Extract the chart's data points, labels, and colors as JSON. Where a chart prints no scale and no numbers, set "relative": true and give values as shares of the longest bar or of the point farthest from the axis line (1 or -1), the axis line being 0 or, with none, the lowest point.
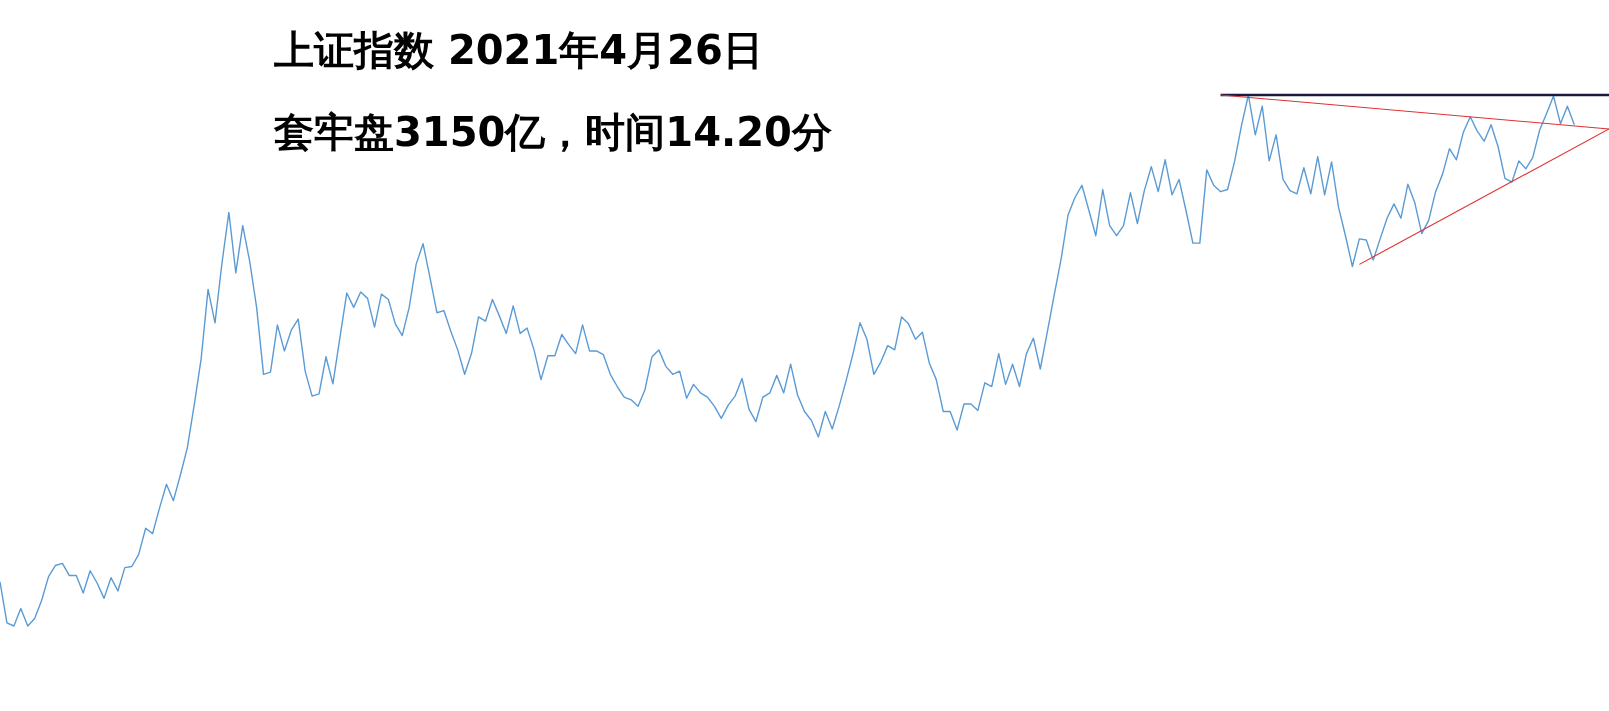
{
  "chart_data": {
    "type": "line",
    "title": "上证指数 2021年4月26日",
    "subtitle": "套牢盘3150亿，时间14.20分",
    "relative": true,
    "categories": [
      null,
      null,
      null,
      null,
      null,
      null,
      null,
      null,
      null,
      null,
      null,
      null,
      null,
      null,
      null,
      null,
      null,
      null,
      null,
      null,
      null,
      null,
      null,
      null,
      null,
      null,
      null,
      null,
      null,
      null,
      null,
      null,
      null,
      null,
      null,
      null,
      null,
      null,
      null,
      null,
      null,
      null,
      null,
      null,
      null,
      null,
      null,
      null,
      null,
      null,
      null,
      null,
      null,
      null,
      null,
      null,
      null,
      null,
      null,
      null,
      null,
      null,
      null,
      null,
      null,
      null,
      null,
      null,
      null,
      null,
      null,
      null,
      null,
      null,
      null,
      null,
      null,
      null,
      null,
      null,
      null,
      null,
      null,
      null,
      null,
      null,
      null,
      null,
      null,
      null,
      null,
      null,
      null,
      null,
      null,
      null,
      null,
      null,
      null,
      null,
      null,
      null,
      null,
      null,
      null,
      null,
      null,
      null,
      null,
      null,
      null,
      null,
      null,
      null,
      null,
      null,
      null,
      null,
      null,
      null,
      null,
      null,
      null,
      null,
      null,
      null,
      null,
      null,
      null,
      null,
      null,
      null,
      null,
      null,
      null,
      null,
      null,
      null,
      null,
      null,
      null,
      null,
      null,
      null,
      null,
      null,
      null,
      null,
      null,
      null,
      null,
      null,
      null,
      null,
      null,
      null,
      null,
      null,
      null,
      null,
      null,
      null,
      null,
      null,
      null,
      null,
      null,
      null,
      null,
      null,
      null,
      null,
      null,
      null,
      null,
      null,
      null,
      null,
      null,
      null,
      null,
      null,
      null,
      null,
      null,
      null,
      null,
      null,
      null,
      null,
      null,
      null,
      null,
      null,
      null,
      null,
      null,
      null,
      null,
      null,
      null,
      null,
      null,
      null,
      null,
      null,
      null,
      null,
      null,
      null,
      null,
      null,
      null,
      null,
      null,
      null,
      null,
      null,
      null,
      null,
      null,
      null,
      null,
      null,
      null,
      null,
      null,
      null,
      null,
      null,
      null,
      null,
      null
    ],
    "series": [
      {
        "color": "#5b9bd5",
        "values": [
          0.083,
          0.006,
          0,
          0.033,
          0,
          0.014,
          0.048,
          0.093,
          0.114,
          0.118,
          0.095,
          0.095,
          0.062,
          0.104,
          0.081,
          0.052,
          0.091,
          0.066,
          0.11,
          0.112,
          0.135,
          0.184,
          0.174,
          0.222,
          0.267,
          0.236,
          0.284,
          0.335,
          0.416,
          0.503,
          0.634,
          0.571,
          0.683,
          0.779,
          0.665,
          0.754,
          0.687,
          0.6,
          0.474,
          0.478,
          0.567,
          0.518,
          0.557,
          0.578,
          0.48,
          0.433,
          0.437,
          0.507,
          0.456,
          0.542,
          0.627,
          0.6,
          0.629,
          0.617,
          0.563,
          0.625,
          0.615,
          0.569,
          0.547,
          0.6,
          0.681,
          0.72,
          0.656,
          0.59,
          0.594,
          0.555,
          0.52,
          0.474,
          0.514,
          0.582,
          0.574,
          0.615,
          0.584,
          0.551,
          0.603,
          0.551,
          0.561,
          0.52,
          0.464,
          0.509,
          0.509,
          0.549,
          0.53,
          0.513,
          0.567,
          0.518,
          0.518,
          0.511,
          0.474,
          0.451,
          0.431,
          0.426,
          0.414,
          0.445,
          0.507,
          0.52,
          0.489,
          0.474,
          0.48,
          0.429,
          0.455,
          0.439,
          0.431,
          0.414,
          0.391,
          0.416,
          0.433,
          0.466,
          0.408,
          0.385,
          0.431,
          0.439,
          0.472,
          0.439,
          0.493,
          0.435,
          0.404,
          0.387,
          0.356,
          0.404,
          0.371,
          0.414,
          0.462,
          0.513,
          0.571,
          0.54,
          0.474,
          0.497,
          0.528,
          0.52,
          0.582,
          0.569,
          0.54,
          0.553,
          0.495,
          0.464,
          0.404,
          0.404,
          0.369,
          0.418,
          0.418,
          0.406,
          0.458,
          0.451,
          0.513,
          0.455,
          0.493,
          0.451,
          0.513,
          0.542,
          0.484,
          0.553,
          0.623,
          0.691,
          0.774,
          0.807,
          0.83,
          0.783,
          0.735,
          0.822,
          0.754,
          0.735,
          0.754,
          0.816,
          0.758,
          0.82,
          0.865,
          0.818,
          0.878,
          0.812,
          0.841,
          0.783,
          0.721,
          0.721,
          0.859,
          0.83,
          0.818,
          0.822,
          0.874,
          0.942,
          1,
          0.925,
          0.979,
          0.876,
          0.925,
          0.841,
          0.82,
          0.814,
          0.863,
          0.814,
          0.884,
          0.812,
          0.874,
          0.789,
          0.735,
          0.677,
          0.729,
          0.727,
          0.689,
          0.729,
          0.768,
          0.795,
          0.768,
          0.832,
          0.797,
          0.739,
          0.764,
          0.818,
          0.851,
          0.899,
          0.878,
          0.93,
          0.959,
          0.932,
          0.913,
          0.944,
          0.903,
          0.843,
          0.836,
          0.876,
          0.861,
          0.882,
          0.934,
          0.965,
          0.998,
          0.946,
          0.979,
          0.944,
          null,
          null,
          null,
          null,
          null
        ]
      },
      {
        "color": "#1a1a40",
        "values": [
          null,
          null,
          null,
          null,
          null,
          null,
          null,
          null,
          null,
          null,
          null,
          null,
          null,
          null,
          null,
          null,
          null,
          null,
          null,
          null,
          null,
          null,
          null,
          null,
          null,
          null,
          null,
          null,
          null,
          null,
          null,
          null,
          null,
          null,
          null,
          null,
          null,
          null,
          null,
          null,
          null,
          null,
          null,
          null,
          null,
          null,
          null,
          null,
          null,
          null,
          null,
          null,
          null,
          null,
          null,
          null,
          null,
          null,
          null,
          null,
          null,
          null,
          null,
          null,
          null,
          null,
          null,
          null,
          null,
          null,
          null,
          null,
          null,
          null,
          null,
          null,
          null,
          null,
          null,
          null,
          null,
          null,
          null,
          null,
          null,
          null,
          null,
          null,
          null,
          null,
          null,
          null,
          null,
          null,
          null,
          null,
          null,
          null,
          null,
          null,
          null,
          null,
          null,
          null,
          null,
          null,
          null,
          null,
          null,
          null,
          null,
          null,
          null,
          null,
          null,
          null,
          null,
          null,
          null,
          null,
          null,
          null,
          null,
          null,
          null,
          null,
          null,
          null,
          null,
          null,
          null,
          null,
          null,
          null,
          null,
          null,
          null,
          null,
          null,
          null,
          null,
          null,
          null,
          null,
          null,
          null,
          null,
          null,
          null,
          null,
          null,
          null,
          null,
          null,
          null,
          null,
          null,
          null,
          null,
          null,
          null,
          null,
          null,
          null,
          null,
          null,
          null,
          null,
          null,
          null,
          null,
          null,
          null,
          null,
          null,
          null,
          1,
          null,
          null,
          null,
          null,
          null,
          null,
          null,
          null,
          null,
          null,
          null,
          null,
          null,
          null,
          null,
          null,
          null,
          null,
          null,
          null,
          null,
          null,
          null,
          null,
          null,
          null,
          null,
          null,
          null,
          null,
          null,
          null,
          null,
          null,
          null,
          null,
          null,
          null,
          null,
          null,
          null,
          null,
          null,
          null,
          null,
          null,
          null,
          null,
          null,
          null,
          null,
          null,
          null,
          null,
          null,
          1
        ]
      },
      {
        "color": "#e03030",
        "values": [
          null,
          null,
          null,
          null,
          null,
          null,
          null,
          null,
          null,
          null,
          null,
          null,
          null,
          null,
          null,
          null,
          null,
          null,
          null,
          null,
          null,
          null,
          null,
          null,
          null,
          null,
          null,
          null,
          null,
          null,
          null,
          null,
          null,
          null,
          null,
          null,
          null,
          null,
          null,
          null,
          null,
          null,
          null,
          null,
          null,
          null,
          null,
          null,
          null,
          null,
          null,
          null,
          null,
          null,
          null,
          null,
          null,
          null,
          null,
          null,
          null,
          null,
          null,
          null,
          null,
          null,
          null,
          null,
          null,
          null,
          null,
          null,
          null,
          null,
          null,
          null,
          null,
          null,
          null,
          null,
          null,
          null,
          null,
          null,
          null,
          null,
          null,
          null,
          null,
          null,
          null,
          null,
          null,
          null,
          null,
          null,
          null,
          null,
          null,
          null,
          null,
          null,
          null,
          null,
          null,
          null,
          null,
          null,
          null,
          null,
          null,
          null,
          null,
          null,
          null,
          null,
          null,
          null,
          null,
          null,
          null,
          null,
          null,
          null,
          null,
          null,
          null,
          null,
          null,
          null,
          null,
          null,
          null,
          null,
          null,
          null,
          null,
          null,
          null,
          null,
          null,
          null,
          null,
          null,
          null,
          null,
          null,
          null,
          null,
          null,
          null,
          null,
          null,
          null,
          null,
          null,
          null,
          null,
          null,
          null,
          null,
          null,
          null,
          null,
          null,
          null,
          null,
          null,
          null,
          null,
          null,
          null,
          null,
          null,
          null,
          null,
          1,
          null,
          null,
          null,
          null,
          null,
          null,
          null,
          null,
          null,
          null,
          null,
          null,
          null,
          null,
          null,
          null,
          null,
          null,
          null,
          null,
          null,
          null,
          null,
          null,
          null,
          null,
          null,
          null,
          null,
          null,
          null,
          null,
          null,
          null,
          null,
          null,
          null,
          null,
          null,
          null,
          null,
          null,
          null,
          null,
          null,
          null,
          null,
          null,
          null,
          null,
          null,
          null,
          null,
          null,
          null,
          0.936
        ]
      },
      {
        "color": "#e03030",
        "values": [
          null,
          null,
          null,
          null,
          null,
          null,
          null,
          null,
          null,
          null,
          null,
          null,
          null,
          null,
          null,
          null,
          null,
          null,
          null,
          null,
          null,
          null,
          null,
          null,
          null,
          null,
          null,
          null,
          null,
          null,
          null,
          null,
          null,
          null,
          null,
          null,
          null,
          null,
          null,
          null,
          null,
          null,
          null,
          null,
          null,
          null,
          null,
          null,
          null,
          null,
          null,
          null,
          null,
          null,
          null,
          null,
          null,
          null,
          null,
          null,
          null,
          null,
          null,
          null,
          null,
          null,
          null,
          null,
          null,
          null,
          null,
          null,
          null,
          null,
          null,
          null,
          null,
          null,
          null,
          null,
          null,
          null,
          null,
          null,
          null,
          null,
          null,
          null,
          null,
          null,
          null,
          null,
          null,
          null,
          null,
          null,
          null,
          null,
          null,
          null,
          null,
          null,
          null,
          null,
          null,
          null,
          null,
          null,
          null,
          null,
          null,
          null,
          null,
          null,
          null,
          null,
          null,
          null,
          null,
          null,
          null,
          null,
          null,
          null,
          null,
          null,
          null,
          null,
          null,
          null,
          null,
          null,
          null,
          null,
          null,
          null,
          null,
          null,
          null,
          null,
          null,
          null,
          null,
          null,
          null,
          null,
          null,
          null,
          null,
          null,
          null,
          null,
          null,
          null,
          null,
          null,
          null,
          null,
          null,
          null,
          null,
          null,
          null,
          null,
          null,
          null,
          null,
          null,
          null,
          null,
          null,
          null,
          null,
          null,
          null,
          null,
          null,
          null,
          null,
          null,
          null,
          null,
          null,
          null,
          null,
          null,
          null,
          null,
          null,
          null,
          null,
          null,
          null,
          null,
          null,
          null,
          0.681,
          null,
          null,
          null,
          null,
          null,
          null,
          null,
          null,
          null,
          null,
          null,
          null,
          null,
          null,
          null,
          null,
          null,
          null,
          null,
          null,
          null,
          null,
          null,
          null,
          null,
          null,
          null,
          null,
          null,
          null,
          null,
          null,
          null,
          null,
          null,
          0.936
        ]
      }
    ]
  }
}
